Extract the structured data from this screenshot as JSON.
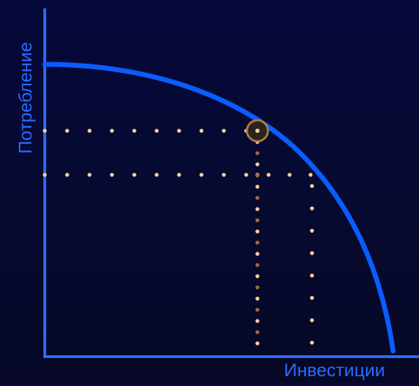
{
  "diagram": {
    "type": "production-possibilities-frontier",
    "y_axis_label": "Потребление",
    "x_axis_label": "Инвестиции",
    "colors": {
      "background": "#05083a",
      "axis": "#2a6cff",
      "curve": "#0a5cff",
      "dots_light": "#ffcf9a",
      "dots_dark": "#a6663a",
      "marker_fill": "#2a241e",
      "marker_stroke": "#b07a40"
    }
  }
}
